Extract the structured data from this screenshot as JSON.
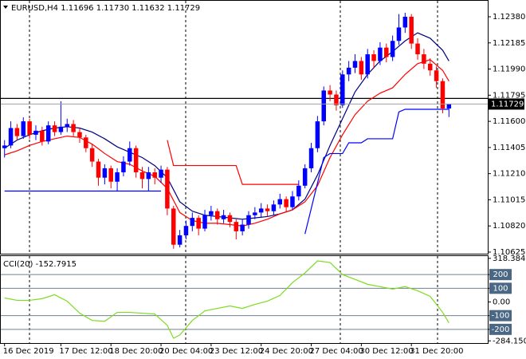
{
  "chart_data": [
    {
      "type": "candlestick",
      "title": "EURUSD,H4  1.11696 1.11730 1.11632 1.11729",
      "open": [
        1.114,
        1.1142,
        1.1155,
        1.1149,
        1.116,
        1.115,
        1.1153,
        1.1145,
        1.1157,
        1.1152,
        1.1156,
        1.1158,
        1.1152,
        1.1148,
        1.114,
        1.113,
        1.1118,
        1.1125,
        1.1115,
        1.1122,
        1.113,
        1.114,
        1.1122,
        1.1117,
        1.1122,
        1.1118,
        1.1124,
        1.1095,
        1.1068,
        1.1075,
        1.1082,
        1.1088,
        1.108,
        1.109,
        1.1093,
        1.1087,
        1.109,
        1.1085,
        1.1078,
        1.1083,
        1.109,
        1.1092,
        1.1095,
        1.1093,
        1.1098,
        1.1102,
        1.1096,
        1.1104,
        1.1112,
        1.1125,
        1.114,
        1.116,
        1.1183,
        1.118,
        1.1172,
        1.1195,
        1.12,
        1.1205,
        1.1195,
        1.121,
        1.1205,
        1.1215,
        1.1208,
        1.122,
        1.123,
        1.1238,
        1.1218,
        1.121,
        1.1203,
        1.1198,
        1.119,
        1.11696
      ],
      "high": [
        1.1146,
        1.116,
        1.1158,
        1.1163,
        1.1162,
        1.1157,
        1.1156,
        1.116,
        1.116,
        1.1175,
        1.1162,
        1.1161,
        1.1155,
        1.115,
        1.1143,
        1.1132,
        1.1128,
        1.1127,
        1.1125,
        1.1134,
        1.1145,
        1.1142,
        1.1126,
        1.1126,
        1.1125,
        1.1127,
        1.1126,
        1.1097,
        1.1079,
        1.1086,
        1.1092,
        1.109,
        1.1094,
        1.1097,
        1.1095,
        1.1094,
        1.1092,
        1.1087,
        1.1087,
        1.1093,
        1.1096,
        1.1099,
        1.1098,
        1.1101,
        1.1106,
        1.1104,
        1.1108,
        1.1116,
        1.1128,
        1.1144,
        1.1164,
        1.1186,
        1.1187,
        1.1183,
        1.1198,
        1.1205,
        1.121,
        1.1208,
        1.1214,
        1.1213,
        1.1219,
        1.1218,
        1.1224,
        1.124,
        1.1241,
        1.124,
        1.1222,
        1.1214,
        1.1207,
        1.1201,
        1.1192,
        1.1173
      ],
      "low": [
        1.1133,
        1.114,
        1.1146,
        1.1147,
        1.1147,
        1.1146,
        1.1142,
        1.1143,
        1.1149,
        1.115,
        1.1152,
        1.1149,
        1.1144,
        1.1137,
        1.1126,
        1.1112,
        1.1113,
        1.111,
        1.1108,
        1.1119,
        1.1127,
        1.1118,
        1.111,
        1.1108,
        1.1113,
        1.1114,
        1.109,
        1.1065,
        1.1066,
        1.1072,
        1.1078,
        1.1075,
        1.1078,
        1.1086,
        1.1083,
        1.1084,
        1.1081,
        1.1072,
        1.1075,
        1.108,
        1.1087,
        1.1088,
        1.1089,
        1.109,
        1.1095,
        1.1092,
        1.1094,
        1.1101,
        1.111,
        1.1122,
        1.1137,
        1.1157,
        1.1175,
        1.1168,
        1.117,
        1.119,
        1.1196,
        1.1191,
        1.1192,
        1.12,
        1.1202,
        1.1204,
        1.1205,
        1.1217,
        1.1226,
        1.1214,
        1.1206,
        1.1199,
        1.1194,
        1.1185,
        1.1166,
        1.11632
      ],
      "close": [
        1.1142,
        1.1155,
        1.1149,
        1.116,
        1.115,
        1.1153,
        1.1145,
        1.1157,
        1.1152,
        1.1156,
        1.1158,
        1.1152,
        1.1148,
        1.114,
        1.113,
        1.1118,
        1.1125,
        1.1115,
        1.1122,
        1.113,
        1.114,
        1.1122,
        1.1117,
        1.1122,
        1.1118,
        1.1124,
        1.1095,
        1.1068,
        1.1075,
        1.1082,
        1.1088,
        1.108,
        1.109,
        1.1093,
        1.1087,
        1.109,
        1.1085,
        1.1078,
        1.1083,
        1.109,
        1.1092,
        1.1095,
        1.1093,
        1.1098,
        1.1102,
        1.1096,
        1.1104,
        1.1112,
        1.1125,
        1.114,
        1.116,
        1.1183,
        1.118,
        1.1172,
        1.1195,
        1.12,
        1.1205,
        1.1195,
        1.121,
        1.1205,
        1.1215,
        1.1208,
        1.122,
        1.123,
        1.1238,
        1.1218,
        1.121,
        1.1203,
        1.1198,
        1.119,
        1.11696,
        1.11729
      ],
      "up_color": "#0000ff",
      "down_color": "#ff0000",
      "xlim": [
        -0.6,
        77.2
      ],
      "xticks": [
        {
          "value": 0,
          "label": "16 Dec 2019"
        },
        {
          "value": 9,
          "label": "17 Dec 12:00"
        },
        {
          "value": 17,
          "label": "18 Dec 20:00"
        },
        {
          "value": 25,
          "label": "20 Dec 04:00"
        },
        {
          "value": 33,
          "label": "23 Dec 12:00"
        },
        {
          "value": 41,
          "label": "24 Dec 20:00"
        },
        {
          "value": 49,
          "label": "27 Dec 04:00"
        },
        {
          "value": 57,
          "label": "30 Dec 12:00"
        },
        {
          "value": 65,
          "label": "31 Dec 20:00"
        }
      ],
      "ylim": [
        1.10613,
        1.12499
      ],
      "yticks": [
        {
          "value": 1.1238,
          "label": "1.12380"
        },
        1.12185,
        {
          "value": 1.1199,
          "label": "1.11990"
        },
        1.11795,
        {
          "value": 1.116,
          "label": "1.11600"
        },
        1.11405,
        {
          "value": 1.1121,
          "label": "1.11210"
        },
        1.11015,
        {
          "value": 1.1082,
          "label": "1.10820"
        },
        1.10625
      ],
      "hlines": [
        {
          "value": 1.11771,
          "color": "#000000"
        }
      ],
      "series": [
        {
          "color": "#000080",
          "x": [
            0,
            2,
            4,
            6,
            8,
            10,
            12,
            14,
            16,
            18,
            20,
            22,
            24,
            26,
            28,
            30,
            32,
            34,
            36,
            38,
            40,
            42,
            44,
            46,
            48,
            50,
            52,
            54,
            56,
            58,
            60,
            62,
            64,
            66,
            68,
            70,
            71
          ],
          "values": [
            1.114,
            1.1146,
            1.115,
            1.1153,
            1.1155,
            1.1156,
            1.1155,
            1.1152,
            1.1147,
            1.1141,
            1.1137,
            1.1133,
            1.1127,
            1.1118,
            1.11,
            1.1093,
            1.109,
            1.1089,
            1.1088,
            1.1087,
            1.1088,
            1.1089,
            1.1091,
            1.1094,
            1.1102,
            1.112,
            1.1142,
            1.1162,
            1.1182,
            1.1195,
            1.1205,
            1.1212,
            1.122,
            1.1226,
            1.1222,
            1.1213,
            1.1205
          ]
        },
        {
          "color": "#ff0000",
          "x": [
            0,
            2,
            4,
            6,
            8,
            10,
            12,
            14,
            16,
            18,
            20,
            22,
            24,
            26,
            28,
            30,
            32,
            34,
            36,
            38,
            40,
            42,
            44,
            46,
            48,
            50,
            52,
            54,
            56,
            58,
            60,
            62,
            64,
            66,
            68,
            70,
            71
          ],
          "values": [
            1.1135,
            1.1138,
            1.1142,
            1.1145,
            1.1147,
            1.1149,
            1.1148,
            1.1143,
            1.1136,
            1.113,
            1.1128,
            1.1123,
            1.1119,
            1.111,
            1.1092,
            1.1086,
            1.1084,
            1.1084,
            1.1083,
            1.1082,
            1.1084,
            1.1087,
            1.1091,
            1.1094,
            1.11,
            1.1112,
            1.1133,
            1.115,
            1.1165,
            1.1175,
            1.1181,
            1.1185,
            1.1195,
            1.1203,
            1.1206,
            1.1198,
            1.119
          ]
        },
        {
          "color": "#ff0000",
          "x": [
            26,
            27,
            37,
            38,
            47
          ],
          "values": [
            1.1146,
            1.1127,
            1.1127,
            1.1113,
            1.1113
          ]
        },
        {
          "color": "#0000ff",
          "x": [
            48,
            51,
            52,
            54,
            55,
            57,
            58,
            62,
            63,
            64,
            71
          ],
          "values": [
            1.1076,
            1.1133,
            1.1136,
            1.1136,
            1.1144,
            1.1144,
            1.1147,
            1.1147,
            1.1167,
            1.1169,
            1.1169
          ]
        },
        {
          "color": "#0000ff",
          "x": [
            0,
            25
          ],
          "values": [
            1.1108,
            1.1108
          ]
        }
      ]
    },
    {
      "type": "line",
      "title": "CCI(20) -152.7915",
      "ylim": [
        -300,
        335
      ],
      "yticks": [
        318.3848,
        200,
        100,
        {
          "value": 0,
          "label": "0.00"
        },
        -100,
        -200,
        -284.1501
      ],
      "series": [
        {
          "color": "#7cdc20",
          "x": [
            0,
            2,
            4,
            6,
            8,
            10,
            12,
            14,
            16,
            18,
            20,
            22,
            24,
            26,
            27,
            28,
            30,
            32,
            34,
            36,
            38,
            40,
            42,
            44,
            46,
            48,
            50,
            52,
            54,
            56,
            58,
            60,
            62,
            64,
            66,
            68,
            70,
            71
          ],
          "values": [
            29,
            12,
            12,
            24,
            53,
            6,
            -82,
            -135,
            -141,
            -76,
            -76,
            -82,
            -88,
            -171,
            -265,
            -241,
            -135,
            -65,
            -47,
            -29,
            -47,
            -18,
            6,
            47,
            141,
            212,
            300,
            288,
            200,
            165,
            129,
            112,
            94,
            112,
            82,
            41,
            -76,
            -152.7915
          ]
        }
      ]
    }
  ]
}
